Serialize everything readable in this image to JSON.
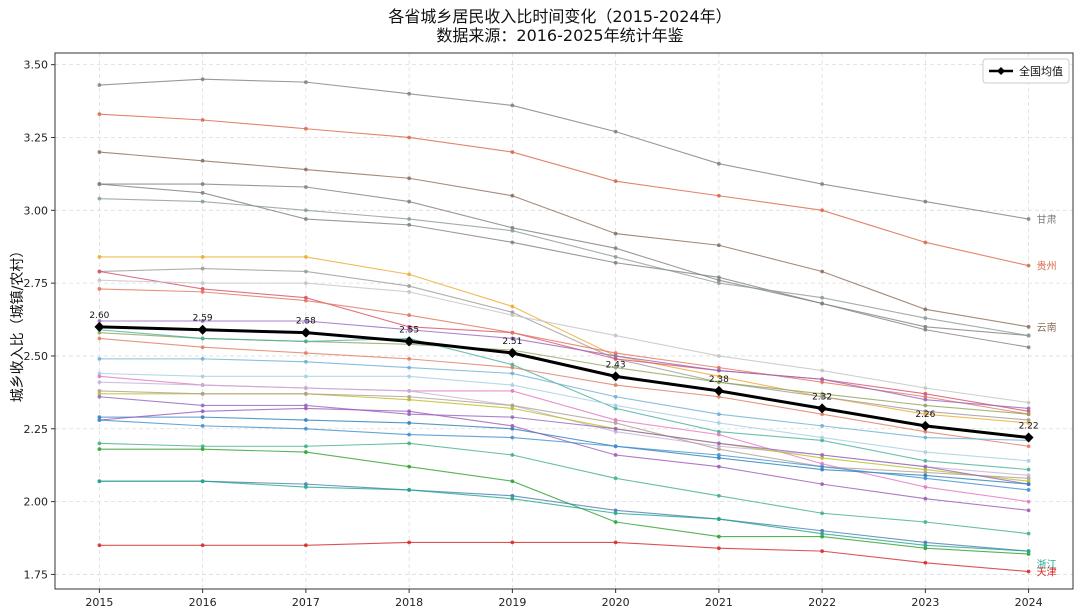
{
  "chart_data": {
    "type": "line",
    "title": "各省城乡居民收入比时间变化（2015-2024年）",
    "subtitle": "数据来源：2016-2025年统计年鉴",
    "xlabel": "",
    "ylabel": "城乡收入比（城镇/农村）",
    "x": [
      2015,
      2016,
      2017,
      2018,
      2019,
      2020,
      2021,
      2022,
      2023,
      2024
    ],
    "ylim": [
      1.7,
      3.54
    ],
    "yticks": [
      1.75,
      2.0,
      2.25,
      2.5,
      2.75,
      3.0,
      3.25,
      3.5
    ],
    "ytick_labels": [
      "1.75",
      "2.00",
      "2.25",
      "2.50",
      "2.75",
      "3.00",
      "3.25",
      "3.50"
    ],
    "grid": true,
    "legend": {
      "position": "top-right",
      "entries": [
        "全国均值"
      ]
    },
    "national": {
      "name": "全国均值",
      "color": "#000000",
      "values": [
        2.6,
        2.59,
        2.58,
        2.55,
        2.51,
        2.43,
        2.38,
        2.32,
        2.26,
        2.22
      ],
      "labels": [
        "2.60",
        "2.59",
        "2.58",
        "2.55",
        "2.51",
        "2.43",
        "2.38",
        "2.32",
        "2.26",
        "2.22"
      ]
    },
    "series": [
      {
        "name": "甘肃",
        "color": "#7f7f7f",
        "values": [
          3.43,
          3.45,
          3.44,
          3.4,
          3.36,
          3.27,
          3.16,
          3.09,
          3.03,
          2.97
        ]
      },
      {
        "name": "贵州",
        "color": "#d9674a",
        "values": [
          3.33,
          3.31,
          3.28,
          3.25,
          3.2,
          3.1,
          3.05,
          3.0,
          2.89,
          2.81
        ]
      },
      {
        "name": "云南",
        "color": "#8c6d5a",
        "values": [
          3.2,
          3.17,
          3.14,
          3.11,
          3.05,
          2.92,
          2.88,
          2.79,
          2.66,
          2.6
        ]
      },
      {
        "name": "",
        "color": "#7f7f7f",
        "values": [
          3.09,
          3.09,
          3.08,
          3.03,
          2.94,
          2.87,
          2.76,
          2.68,
          2.6,
          2.57
        ]
      },
      {
        "name": "",
        "color": "#7f7f7f",
        "values": [
          3.09,
          3.06,
          2.97,
          2.95,
          2.89,
          2.82,
          2.77,
          2.68,
          2.59,
          2.53
        ]
      },
      {
        "name": "",
        "color": "#8a9a9a",
        "values": [
          3.04,
          3.03,
          3.0,
          2.97,
          2.93,
          2.84,
          2.75,
          2.7,
          2.63,
          2.57
        ]
      },
      {
        "name": "",
        "color": "#f0a830",
        "values": [
          2.84,
          2.84,
          2.84,
          2.78,
          2.67,
          2.5,
          2.43,
          2.36,
          2.3,
          2.27
        ]
      },
      {
        "name": "",
        "color": "#9a9a9a",
        "values": [
          2.79,
          2.8,
          2.79,
          2.74,
          2.65,
          2.49,
          2.41,
          2.36,
          2.31,
          2.28
        ]
      },
      {
        "name": "",
        "color": "#d94f6a",
        "values": [
          2.79,
          2.73,
          2.7,
          2.6,
          2.58,
          2.49,
          2.45,
          2.42,
          2.37,
          2.31
        ]
      },
      {
        "name": "",
        "color": "#e4735a",
        "values": [
          2.73,
          2.72,
          2.69,
          2.64,
          2.58,
          2.51,
          2.46,
          2.41,
          2.36,
          2.3
        ]
      },
      {
        "name": "",
        "color": "#c3c3c3",
        "values": [
          2.76,
          2.75,
          2.75,
          2.72,
          2.64,
          2.57,
          2.5,
          2.45,
          2.39,
          2.34
        ]
      },
      {
        "name": "",
        "color": "#9467bd",
        "values": [
          2.62,
          2.62,
          2.62,
          2.59,
          2.56,
          2.5,
          2.45,
          2.42,
          2.35,
          2.32
        ]
      },
      {
        "name": "",
        "color": "#8fa35a",
        "values": [
          2.58,
          2.56,
          2.55,
          2.54,
          2.52,
          2.46,
          2.41,
          2.37,
          2.33,
          2.3
        ]
      },
      {
        "name": "",
        "color": "#e07a5f",
        "values": [
          2.56,
          2.53,
          2.51,
          2.49,
          2.46,
          2.4,
          2.36,
          2.3,
          2.24,
          2.19
        ]
      },
      {
        "name": "",
        "color": "#48b09a",
        "values": [
          2.59,
          2.56,
          2.55,
          2.56,
          2.47,
          2.32,
          2.24,
          2.21,
          2.14,
          2.11
        ]
      },
      {
        "name": "",
        "color": "#6baed6",
        "values": [
          2.49,
          2.49,
          2.48,
          2.46,
          2.44,
          2.36,
          2.3,
          2.26,
          2.22,
          2.21
        ]
      },
      {
        "name": "",
        "color": "#a6cee3",
        "values": [
          2.44,
          2.43,
          2.43,
          2.43,
          2.4,
          2.33,
          2.27,
          2.22,
          2.17,
          2.14
        ]
      },
      {
        "name": "",
        "color": "#e377c2",
        "values": [
          2.43,
          2.4,
          2.39,
          2.38,
          2.38,
          2.28,
          2.23,
          2.13,
          2.05,
          2.0
        ]
      },
      {
        "name": "",
        "color": "#c5b0d5",
        "values": [
          2.41,
          2.4,
          2.39,
          2.38,
          2.33,
          2.24,
          2.19,
          2.16,
          2.12,
          2.09
        ]
      },
      {
        "name": "",
        "color": "#bcbd22",
        "values": [
          2.37,
          2.37,
          2.37,
          2.35,
          2.32,
          2.25,
          2.2,
          2.15,
          2.11,
          2.07
        ]
      },
      {
        "name": "",
        "color": "#b0a090",
        "values": [
          2.38,
          2.37,
          2.37,
          2.36,
          2.33,
          2.27,
          2.18,
          2.12,
          2.1,
          2.08
        ]
      },
      {
        "name": "",
        "color": "#9467bd",
        "values": [
          2.36,
          2.33,
          2.33,
          2.3,
          2.29,
          2.25,
          2.2,
          2.16,
          2.12,
          2.06
        ]
      },
      {
        "name": "",
        "color": "#2c7fb8",
        "values": [
          2.29,
          2.29,
          2.28,
          2.27,
          2.25,
          2.19,
          2.15,
          2.11,
          2.09,
          2.06
        ]
      },
      {
        "name": "",
        "color": "#9b59b6",
        "values": [
          2.28,
          2.31,
          2.32,
          2.31,
          2.26,
          2.16,
          2.12,
          2.06,
          2.01,
          1.97
        ]
      },
      {
        "name": "",
        "color": "#3d8fd1",
        "values": [
          2.28,
          2.26,
          2.25,
          2.23,
          2.22,
          2.19,
          2.16,
          2.12,
          2.08,
          2.04
        ]
      },
      {
        "name": "",
        "color": "#3db07f",
        "values": [
          2.2,
          2.19,
          2.19,
          2.2,
          2.16,
          2.08,
          2.02,
          1.96,
          1.93,
          1.89
        ]
      },
      {
        "name": "",
        "color": "#2ca02c",
        "values": [
          2.18,
          2.18,
          2.17,
          2.12,
          2.07,
          1.93,
          1.88,
          1.88,
          1.84,
          1.82
        ]
      },
      {
        "name": "",
        "color": "#4a7ab5",
        "values": [
          2.07,
          2.07,
          2.06,
          2.04,
          2.02,
          1.97,
          1.94,
          1.9,
          1.86,
          1.83
        ]
      },
      {
        "name": "浙江",
        "color": "#1fa88a",
        "values": [
          2.07,
          2.07,
          2.05,
          2.04,
          2.01,
          1.96,
          1.94,
          1.89,
          1.85,
          1.83
        ]
      },
      {
        "name": "天津",
        "color": "#d62728",
        "values": [
          1.85,
          1.85,
          1.85,
          1.86,
          1.86,
          1.86,
          1.84,
          1.83,
          1.79,
          1.76
        ]
      }
    ]
  },
  "colors": {
    "national": "#000000",
    "grid": "#dddddd",
    "axis": "#333333"
  }
}
